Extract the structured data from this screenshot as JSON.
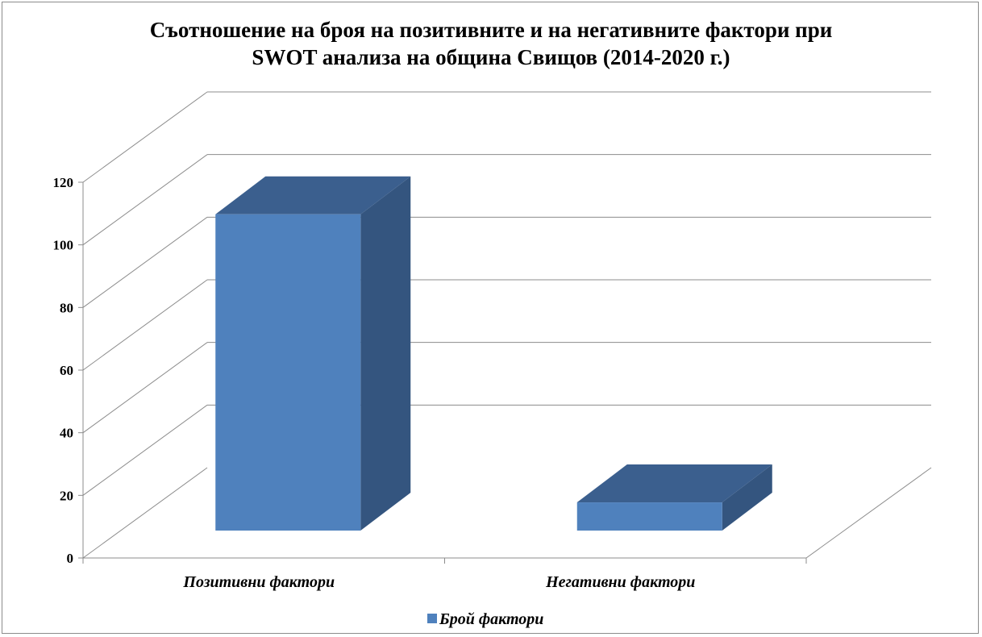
{
  "chart_data": {
    "type": "bar",
    "title_line1": "Съотношение на броя на позитивните и на негативните фактори при",
    "title_line2": "SWOT анализа на община Свищов (2014-2020 г.)",
    "categories": [
      "Позитивни фактори",
      "Негативни фактори"
    ],
    "series": [
      {
        "name": "Брой фактори",
        "values": [
          101,
          9
        ]
      }
    ],
    "ylim": [
      0,
      120
    ],
    "yticks": [
      "0",
      "20",
      "40",
      "60",
      "80",
      "100",
      "120"
    ],
    "grid": true,
    "legend": "bottom",
    "colors": {
      "front": "#4f81bd",
      "side": "#34557f",
      "top": "#3b5f8e",
      "grid": "#8c8c8c"
    }
  }
}
